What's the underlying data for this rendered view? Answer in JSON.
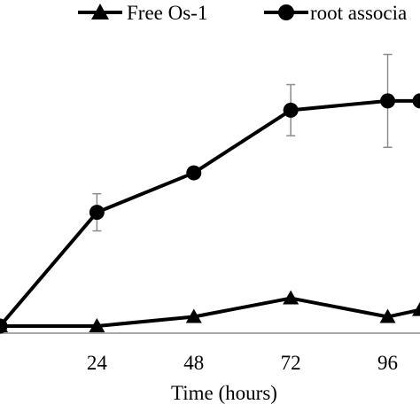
{
  "chart_data": {
    "type": "line",
    "title": "",
    "xlabel": "Time (hours)",
    "ylabel": "",
    "x": [
      0,
      24,
      48,
      72,
      96,
      104
    ],
    "xticks": [
      24,
      48,
      72,
      96
    ],
    "tick_labels": [
      "24",
      "48",
      "72",
      "96"
    ],
    "xlim": [
      0,
      104
    ],
    "ylim": [
      0,
      100
    ],
    "grid": false,
    "legend_placement": "top",
    "series": [
      {
        "name": "Free Os-1",
        "marker": "triangle",
        "values": [
          0,
          0,
          4,
          12,
          4,
          7
        ]
      },
      {
        "name": "root associa",
        "marker": "circle",
        "values": [
          0,
          49,
          66,
          93,
          97,
          97
        ],
        "error": [
          0,
          8,
          null,
          11,
          20,
          null
        ]
      }
    ],
    "colors": {
      "line": "#000000",
      "errorbar": "#8c8c8c",
      "axis": "#8c8c8c"
    }
  }
}
